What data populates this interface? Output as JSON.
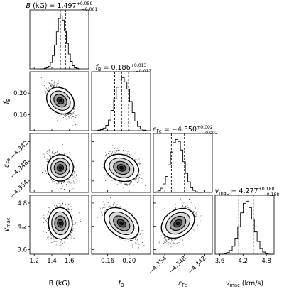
{
  "chart_data": {
    "type": "corner",
    "params": [
      {
        "name": "B",
        "label_html": "B (kG)",
        "title_prefix": "B (kG) = ",
        "value": "1.497",
        "err_plus": "+0.059",
        "err_minus": "−0.061",
        "median": 1.497,
        "q16": 1.436,
        "q84": 1.556,
        "range": [
          1.15,
          1.82
        ],
        "ticks": [
          1.2,
          1.4,
          1.6
        ],
        "tick_labels": [
          "1.2",
          "1.4",
          "1.6"
        ],
        "hist": [
          0,
          0,
          1,
          2,
          5,
          12,
          25,
          45,
          70,
          95,
          100,
          92,
          72,
          48,
          28,
          14,
          6,
          2,
          1,
          0
        ]
      },
      {
        "name": "fB",
        "label_html": "f_B",
        "title_prefix": "f_B = ",
        "value": "0.186",
        "err_plus": "+0.013",
        "err_minus": "−0.013",
        "median": 0.186,
        "q16": 0.173,
        "q84": 0.199,
        "range": [
          0.13,
          0.24
        ],
        "ticks": [
          0.16,
          0.2
        ],
        "tick_labels": [
          "0.16",
          "0.20"
        ],
        "hist": [
          0,
          1,
          2,
          5,
          10,
          20,
          38,
          60,
          82,
          96,
          100,
          92,
          78,
          55,
          34,
          18,
          8,
          3,
          1,
          0
        ]
      },
      {
        "name": "eFe",
        "label_html": "ε_Fe",
        "title_prefix": "ε_Fe = ",
        "value": "−4.350",
        "err_plus": "+0.002",
        "err_minus": "−0.002",
        "median": -4.35,
        "q16": -4.352,
        "q84": -4.348,
        "range": [
          -4.3575,
          -4.3395
        ],
        "ticks": [
          -4.354,
          -4.348,
          -4.342
        ],
        "tick_labels": [
          "−4.354",
          "−4.348",
          "−4.342"
        ],
        "hist": [
          0,
          1,
          3,
          8,
          16,
          30,
          52,
          76,
          94,
          100,
          96,
          80,
          58,
          36,
          20,
          9,
          4,
          1,
          0,
          0
        ]
      },
      {
        "name": "vmac",
        "label_html": "v_mac (km/s)",
        "title_prefix": "v_mac = ",
        "value": "4.277",
        "err_plus": "+0.188",
        "err_minus": "−0.188",
        "median": 4.277,
        "q16": 4.089,
        "q84": 4.465,
        "range": [
          3.48,
          5.0
        ],
        "ticks": [
          3.6,
          4.2,
          4.8
        ],
        "tick_labels": [
          "3.6",
          "4.2",
          "4.8"
        ],
        "hist": [
          0,
          0,
          1,
          3,
          7,
          15,
          30,
          52,
          78,
          96,
          100,
          88,
          66,
          42,
          24,
          11,
          4,
          1,
          0,
          0
        ]
      }
    ],
    "correlations": {
      "1-0": -0.65,
      "2-0": -0.25,
      "2-1": -0.3,
      "3-0": 0.05,
      "3-1": -0.6,
      "3-2": 0.55
    },
    "ylabels": [
      "f_B",
      "ε_Fe",
      "v_mac"
    ],
    "xlabels": [
      "B (kG)",
      "f_B",
      "ε_Fe",
      "v_mac (km/s)"
    ]
  }
}
